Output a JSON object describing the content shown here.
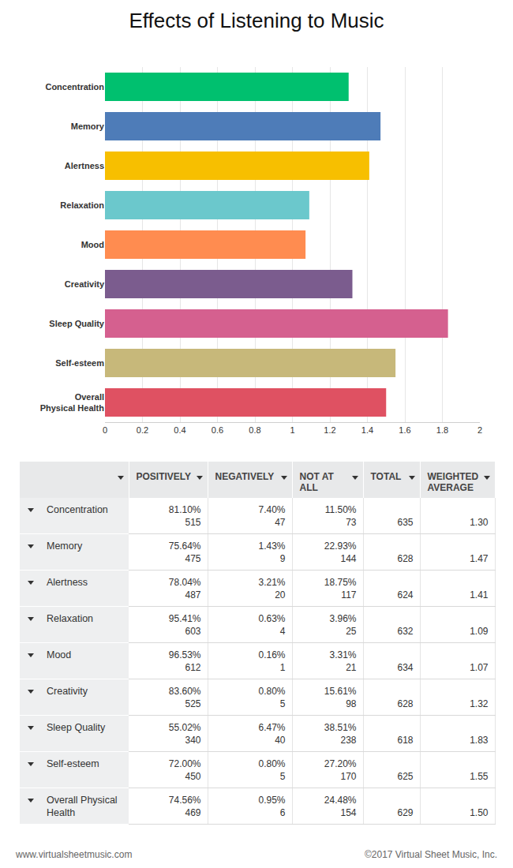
{
  "chart_data": {
    "type": "bar",
    "title": "Effects of Listening to Music",
    "orientation": "horizontal",
    "categories": [
      "Concentration",
      "Memory",
      "Alertness",
      "Relaxation",
      "Mood",
      "Creativity",
      "Sleep Quality",
      "Self-esteem",
      "Overall Physical Health"
    ],
    "values": [
      1.3,
      1.47,
      1.41,
      1.09,
      1.07,
      1.32,
      1.83,
      1.55,
      1.5
    ],
    "colors": [
      "#00c06f",
      "#4e7cb8",
      "#f7bf00",
      "#6bc8cc",
      "#ff8c50",
      "#7b5c8e",
      "#d5608f",
      "#c7b87a",
      "#df5162"
    ],
    "xlim": [
      0,
      2
    ],
    "xticks": [
      0,
      0.2,
      0.4,
      0.6,
      0.8,
      1,
      1.2,
      1.4,
      1.6,
      1.8,
      2
    ],
    "grid": true
  },
  "table": {
    "header": [
      "POSITIVELY",
      "NEGATIVELY",
      "NOT AT ALL",
      "TOTAL",
      "WEIGHTED AVERAGE"
    ],
    "rows": [
      {
        "label": "Concentration",
        "responses": [
          [
            "81.10%",
            "515"
          ],
          [
            "7.40%",
            "47"
          ],
          [
            "11.50%",
            "73"
          ]
        ],
        "total": "635",
        "weighted_average": "1.30"
      },
      {
        "label": "Memory",
        "responses": [
          [
            "75.64%",
            "475"
          ],
          [
            "1.43%",
            "9"
          ],
          [
            "22.93%",
            "144"
          ]
        ],
        "total": "628",
        "weighted_average": "1.47"
      },
      {
        "label": "Alertness",
        "responses": [
          [
            "78.04%",
            "487"
          ],
          [
            "3.21%",
            "20"
          ],
          [
            "18.75%",
            "117"
          ]
        ],
        "total": "624",
        "weighted_average": "1.41"
      },
      {
        "label": "Relaxation",
        "responses": [
          [
            "95.41%",
            "603"
          ],
          [
            "0.63%",
            "4"
          ],
          [
            "3.96%",
            "25"
          ]
        ],
        "total": "632",
        "weighted_average": "1.09"
      },
      {
        "label": "Mood",
        "responses": [
          [
            "96.53%",
            "612"
          ],
          [
            "0.16%",
            "1"
          ],
          [
            "3.31%",
            "21"
          ]
        ],
        "total": "634",
        "weighted_average": "1.07"
      },
      {
        "label": "Creativity",
        "responses": [
          [
            "83.60%",
            "525"
          ],
          [
            "0.80%",
            "5"
          ],
          [
            "15.61%",
            "98"
          ]
        ],
        "total": "628",
        "weighted_average": "1.32"
      },
      {
        "label": "Sleep Quality",
        "responses": [
          [
            "55.02%",
            "340"
          ],
          [
            "6.47%",
            "40"
          ],
          [
            "38.51%",
            "238"
          ]
        ],
        "total": "618",
        "weighted_average": "1.83"
      },
      {
        "label": "Self-esteem",
        "responses": [
          [
            "72.00%",
            "450"
          ],
          [
            "0.80%",
            "5"
          ],
          [
            "27.20%",
            "170"
          ]
        ],
        "total": "625",
        "weighted_average": "1.55"
      },
      {
        "label": "Overall Physical Health",
        "responses": [
          [
            "74.56%",
            "469"
          ],
          [
            "0.95%",
            "6"
          ],
          [
            "24.48%",
            "154"
          ]
        ],
        "total": "629",
        "weighted_average": "1.50"
      }
    ]
  },
  "footer": {
    "left": "www.virtualsheetmusic.com",
    "right": "©2017 Virtual Sheet Music, Inc."
  }
}
